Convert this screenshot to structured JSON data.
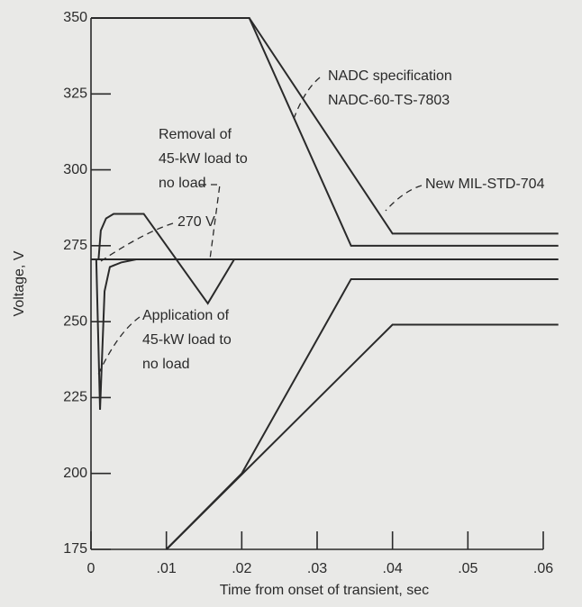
{
  "chart_data": {
    "type": "line",
    "x_label": "Time from onset of transient, sec",
    "y_label": "Voltage, V",
    "xlim": [
      0,
      0.06
    ],
    "ylim": [
      175,
      350
    ],
    "xticks": [
      0,
      {
        "value": 0.01,
        "label": ".01"
      },
      {
        "value": 0.02,
        "label": ".02"
      },
      {
        "value": 0.03,
        "label": ".03"
      },
      {
        "value": 0.04,
        "label": ".04"
      },
      {
        "value": 0.05,
        "label": ".05"
      },
      {
        "value": 0.06,
        "label": ".06"
      }
    ],
    "yticks": [
      175,
      200,
      225,
      250,
      275,
      300,
      325,
      350
    ],
    "series": [
      {
        "color": "#2a2a2a",
        "x": [
          0,
          0.021,
          0.0345,
          0.062
        ],
        "values": [
          350,
          350,
          275,
          275
        ]
      },
      {
        "color": "#2a2a2a",
        "x": [
          0.021,
          0.04,
          0.062
        ],
        "values": [
          350,
          279,
          279
        ]
      },
      {
        "color": "#2a2a2a",
        "x": [
          0.01,
          0.02,
          0.0345,
          0.062
        ],
        "values": [
          175,
          200,
          264,
          264
        ]
      },
      {
        "color": "#2a2a2a",
        "x": [
          0.01,
          0.04,
          0.062
        ],
        "values": [
          175,
          249,
          249
        ]
      },
      {
        "color": "#2a2a2a",
        "x": [
          0,
          0.062
        ],
        "values": [
          270.5,
          270.5
        ]
      },
      {
        "color": "#2a2a2a",
        "x": [
          0.0007,
          0.0012,
          0.0018,
          0.0025,
          0.004,
          0.006
        ],
        "values": [
          270.5,
          221,
          260,
          268,
          269.5,
          270.5
        ]
      },
      {
        "color": "#2a2a2a",
        "x": [
          0.001,
          0.0013,
          0.002,
          0.003,
          0.007,
          0.0155,
          0.019
        ],
        "values": [
          270.5,
          280,
          284,
          285.5,
          285.5,
          256,
          270.5
        ]
      }
    ],
    "annotations": [
      {
        "lines": [
          "NADC specification",
          "NADC-60-TS-7803"
        ]
      },
      {
        "lines": [
          "New MIL-STD-704"
        ]
      },
      {
        "lines": [
          "Removal of",
          "45-kW load to",
          "no load"
        ]
      },
      {
        "lines": [
          "270 V"
        ]
      },
      {
        "lines": [
          "Application of",
          "45-kW load to",
          "no load"
        ]
      }
    ]
  }
}
